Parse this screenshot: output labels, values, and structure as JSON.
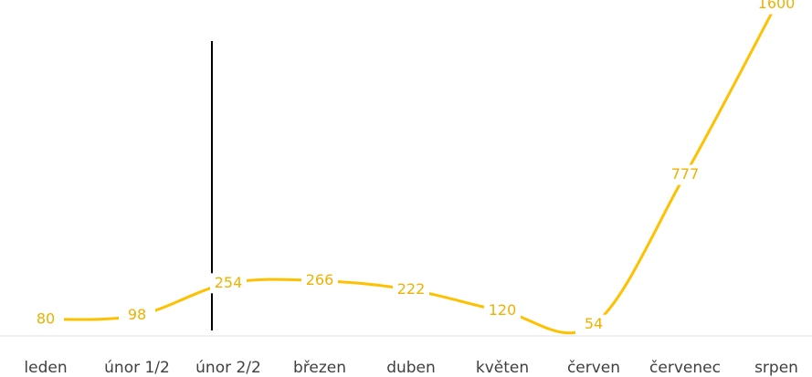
{
  "chart_data": {
    "type": "line",
    "categories": [
      "leden",
      "únor 1/2",
      "únor 2/2",
      "březen",
      "duben",
      "květen",
      "červen",
      "červenec",
      "srpen"
    ],
    "series": [
      {
        "name": null,
        "color": "#ffc000",
        "values": [
          80,
          98,
          254,
          266,
          222,
          120,
          54,
          777,
          1600
        ]
      }
    ],
    "ylim": [
      0,
      1620
    ],
    "smooth": true,
    "data_labels": true
  }
}
